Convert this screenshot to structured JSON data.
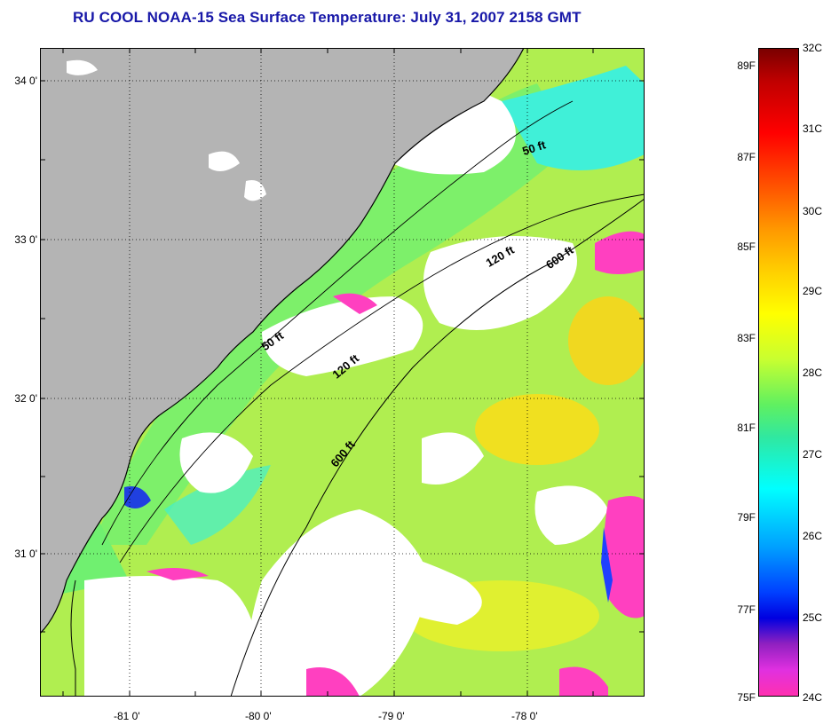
{
  "title": "RU COOL  NOAA-15  Sea Surface Temperature:  July 31, 2007 2158 GMT",
  "map": {
    "lat_labels": [
      "34 0'",
      "33 0'",
      "32 0'",
      "31 0'"
    ],
    "lon_labels": [
      "-81 0'",
      "-80 0'",
      "-79 0'",
      "-78 0'"
    ],
    "contour_labels": [
      "50 ft",
      "120 ft",
      "600 ft",
      "50 ft",
      "120 ft",
      "600 ft"
    ],
    "colors": {
      "land": "#b4b4b4",
      "cloud": "#ffffff",
      "ocean_warm": "#b8f040",
      "ocean_mid": "#60f080"
    }
  },
  "colorbar": {
    "celsius": [
      "32C",
      "31C",
      "30C",
      "29C",
      "28C",
      "27C",
      "26C",
      "25C",
      "24C"
    ],
    "fahrenheit": [
      "89F",
      "87F",
      "85F",
      "83F",
      "81F",
      "79F",
      "77F",
      "75F"
    ]
  }
}
